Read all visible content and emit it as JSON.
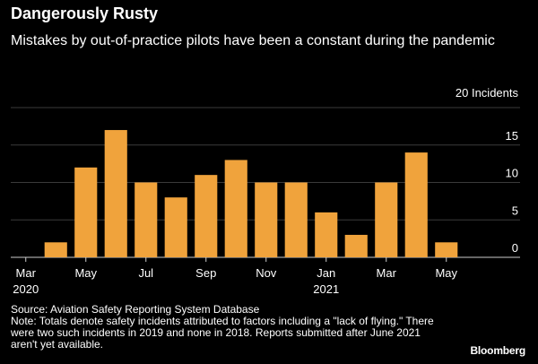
{
  "chart_data": {
    "type": "bar",
    "title": "Dangerously Rusty",
    "subtitle": "Mistakes by out-of-practice pilots have been a constant during the pandemic",
    "unit_label": "20 Incidents",
    "categories": [
      "Mar 2020",
      "Apr 2020",
      "May 2020",
      "Jun 2020",
      "Jul 2020",
      "Aug 2020",
      "Sep 2020",
      "Oct 2020",
      "Nov 2020",
      "Dec 2020",
      "Jan 2021",
      "Feb 2021",
      "Mar 2021",
      "Apr 2021",
      "May 2021",
      "Jun 2021"
    ],
    "values": [
      0,
      2,
      12,
      17,
      10,
      8,
      11,
      13,
      10,
      10,
      6,
      3,
      10,
      14,
      2,
      0
    ],
    "ylim": [
      0,
      20
    ],
    "y_ticks": [
      0,
      5,
      10,
      15
    ],
    "x_ticks": [
      {
        "label": "Mar",
        "year": "2020",
        "index": 0
      },
      {
        "label": "May",
        "year": "",
        "index": 2
      },
      {
        "label": "Jul",
        "year": "",
        "index": 4
      },
      {
        "label": "Sep",
        "year": "",
        "index": 6
      },
      {
        "label": "Nov",
        "year": "",
        "index": 8
      },
      {
        "label": "Jan",
        "year": "2021",
        "index": 10
      },
      {
        "label": "Mar",
        "year": "",
        "index": 12
      },
      {
        "label": "May",
        "year": "",
        "index": 14
      }
    ],
    "grid": true,
    "bar_color": "#F0A33C",
    "grid_color": "#3a3a3a"
  },
  "footer": {
    "source": "Source: Aviation Safety Reporting System Database",
    "note": "Note: Totals denote safety incidents attributed to factors including a \"lack of flying.\" There were two such incidents in 2019 and none in 2018. Reports submitted after June 2021 aren't yet available.",
    "brand": "Bloomberg"
  }
}
